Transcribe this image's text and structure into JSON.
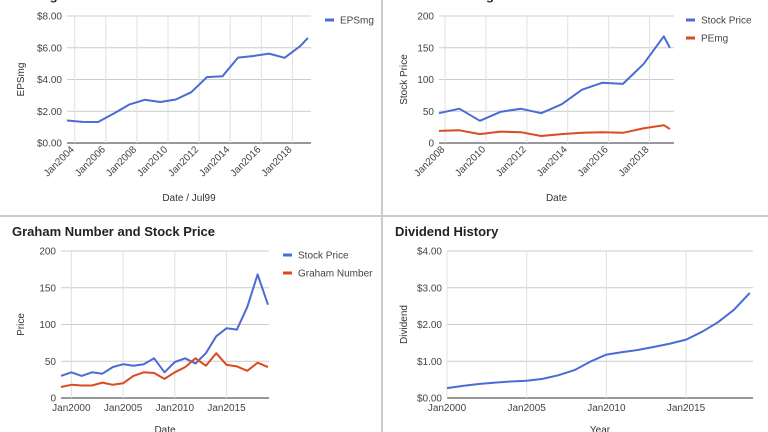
{
  "chart_data": [
    {
      "id": "eps",
      "type": "line",
      "title": "EPSmg",
      "xlabel": "Date / Jul99",
      "ylabel": "EPSmg",
      "xlim": [
        2003.5,
        2019.2
      ],
      "ylim": [
        0,
        8
      ],
      "yticks": [
        "$0.00",
        "$2.00",
        "$4.00",
        "$6.00",
        "$8.00"
      ],
      "ytick_values": [
        0,
        2,
        4,
        6,
        8
      ],
      "xticks": [
        "Jan2004",
        "Jan2006",
        "Jan2008",
        "Jan2010",
        "Jan2012",
        "Jan2014",
        "Jan2016",
        "Jan2018"
      ],
      "xtick_values": [
        2004,
        2006,
        2008,
        2010,
        2012,
        2014,
        2016,
        2018
      ],
      "xtick_rotate": true,
      "grid": true,
      "legend": "right",
      "series": [
        {
          "name": "EPSmg",
          "color": "#4a6cd4",
          "x": [
            2003.5,
            2004.5,
            2005.5,
            2006.5,
            2007.5,
            2008.5,
            2009.5,
            2010.5,
            2011.5,
            2012.5,
            2013.5,
            2014.5,
            2015.5,
            2016.5,
            2017.5,
            2018.5,
            2019.0
          ],
          "values": [
            1.42,
            1.33,
            1.32,
            1.85,
            2.42,
            2.72,
            2.58,
            2.74,
            3.2,
            4.15,
            4.2,
            5.38,
            5.48,
            5.63,
            5.37,
            6.1,
            6.62
          ]
        }
      ]
    },
    {
      "id": "price",
      "type": "line",
      "title": "Price and PEmg",
      "xlabel": "Date",
      "ylabel": "Stock Price",
      "xlim": [
        2007.7,
        2019.2
      ],
      "ylim": [
        0,
        200
      ],
      "yticks": [
        "0",
        "50",
        "100",
        "150",
        "200"
      ],
      "ytick_values": [
        0,
        50,
        100,
        150,
        200
      ],
      "xticks": [
        "Jan2008",
        "Jan2010",
        "Jan2012",
        "Jan2014",
        "Jan2016",
        "Jan2018"
      ],
      "xtick_values": [
        2008,
        2010,
        2012,
        2014,
        2016,
        2018
      ],
      "xtick_rotate": true,
      "grid": true,
      "legend": "right",
      "series": [
        {
          "name": "Stock Price",
          "color": "#4a6cd4",
          "x": [
            2007.7,
            2008.7,
            2009.7,
            2010.7,
            2011.7,
            2012.7,
            2013.7,
            2014.7,
            2015.7,
            2016.7,
            2017.7,
            2018.7,
            2019.0
          ],
          "values": [
            47,
            54,
            35,
            49,
            54,
            47,
            61,
            84,
            95,
            93,
            124,
            168,
            150
          ]
        },
        {
          "name": "PEmg",
          "color": "#dc4a22",
          "x": [
            2007.7,
            2008.7,
            2009.7,
            2010.7,
            2011.7,
            2012.7,
            2013.7,
            2014.7,
            2015.7,
            2016.7,
            2017.7,
            2018.7,
            2019.0
          ],
          "values": [
            19,
            20,
            14,
            18,
            17,
            11,
            14,
            16,
            17,
            16,
            23,
            28,
            22
          ]
        }
      ]
    },
    {
      "id": "graham",
      "type": "line",
      "title": "Graham Number and Stock Price",
      "xlabel": "Date",
      "ylabel": "Price",
      "xlim": [
        1999,
        2019.1
      ],
      "ylim": [
        0,
        200
      ],
      "yticks": [
        "0",
        "50",
        "100",
        "150",
        "200"
      ],
      "ytick_values": [
        0,
        50,
        100,
        150,
        200
      ],
      "xticks": [
        "Jan2000",
        "Jan2005",
        "Jan2010",
        "Jan2015"
      ],
      "xtick_values": [
        2000,
        2005,
        2010,
        2015
      ],
      "xtick_rotate": false,
      "grid": true,
      "legend": "right",
      "series": [
        {
          "name": "Stock Price",
          "color": "#4a6cd4",
          "x": [
            1999,
            2000,
            2001,
            2002,
            2003,
            2004,
            2005,
            2006,
            2007,
            2008,
            2009,
            2010,
            2011,
            2012,
            2013,
            2014,
            2015,
            2016,
            2017,
            2018,
            2019
          ],
          "values": [
            30,
            35,
            30,
            35,
            33,
            42,
            46,
            44,
            46,
            54,
            35,
            49,
            54,
            47,
            61,
            84,
            95,
            93,
            124,
            168,
            127
          ]
        },
        {
          "name": "Graham Number",
          "color": "#dc4a22",
          "x": [
            1999,
            2000,
            2001,
            2002,
            2003,
            2004,
            2005,
            2006,
            2007,
            2008,
            2009,
            2010,
            2011,
            2012,
            2013,
            2014,
            2015,
            2016,
            2017,
            2018,
            2019
          ],
          "values": [
            15,
            18,
            17,
            17,
            21,
            18,
            20,
            30,
            35,
            34,
            26,
            35,
            42,
            54,
            44,
            61,
            45,
            43,
            37,
            48,
            42
          ]
        }
      ]
    },
    {
      "id": "dividend",
      "type": "line",
      "title": "Dividend History",
      "xlabel": "Year",
      "ylabel": "Dividend",
      "xlim": [
        2000,
        2019.2
      ],
      "ylim": [
        0,
        4
      ],
      "yticks": [
        "$0.00",
        "$1.00",
        "$2.00",
        "$3.00",
        "$4.00"
      ],
      "ytick_values": [
        0,
        1,
        2,
        3,
        4
      ],
      "xticks": [
        "Jan2000",
        "Jan2005",
        "Jan2010",
        "Jan2015"
      ],
      "xtick_values": [
        2000,
        2005,
        2010,
        2015
      ],
      "xtick_rotate": false,
      "grid": true,
      "legend": "none",
      "series": [
        {
          "name": "",
          "color": "#4a6cd4",
          "x": [
            2000,
            2001,
            2002,
            2003,
            2004,
            2005,
            2006,
            2007,
            2008,
            2009,
            2010,
            2011,
            2012,
            2013,
            2014,
            2015,
            2016,
            2017,
            2018,
            2019
          ],
          "values": [
            0.27,
            0.33,
            0.38,
            0.42,
            0.45,
            0.47,
            0.52,
            0.62,
            0.76,
            0.99,
            1.18,
            1.25,
            1.31,
            1.39,
            1.48,
            1.59,
            1.8,
            2.06,
            2.4,
            2.86
          ]
        }
      ]
    }
  ]
}
